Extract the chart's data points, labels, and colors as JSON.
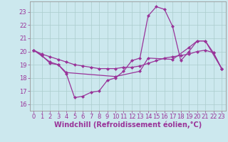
{
  "xlabel": "Windchill (Refroidissement éolien,°C)",
  "bg_color": "#cce8ee",
  "line_color": "#993399",
  "grid_color": "#aacccc",
  "axis_color": "#666666",
  "xlim": [
    -0.5,
    23.5
  ],
  "ylim": [
    15.5,
    23.8
  ],
  "yticks": [
    16,
    17,
    18,
    19,
    20,
    21,
    22,
    23
  ],
  "xticks": [
    0,
    1,
    2,
    3,
    4,
    5,
    6,
    7,
    8,
    9,
    10,
    11,
    12,
    13,
    14,
    15,
    16,
    17,
    18,
    19,
    20,
    21,
    22,
    23
  ],
  "line1_x": [
    0,
    1,
    2,
    3,
    4,
    5,
    6,
    7,
    8,
    9,
    10,
    11,
    12,
    13,
    14,
    15,
    16,
    17,
    18,
    19,
    20,
    21,
    22,
    23
  ],
  "line1_y": [
    20.1,
    19.7,
    19.1,
    19.0,
    18.3,
    16.5,
    16.6,
    16.9,
    17.0,
    17.8,
    18.0,
    18.5,
    19.3,
    19.5,
    22.7,
    23.4,
    23.2,
    21.9,
    19.3,
    20.0,
    20.8,
    20.8,
    19.9,
    18.7
  ],
  "line2_x": [
    0,
    2,
    3,
    4,
    10,
    13,
    14,
    17,
    19,
    20,
    21,
    23
  ],
  "line2_y": [
    20.1,
    19.2,
    19.0,
    18.4,
    18.1,
    18.5,
    19.5,
    19.4,
    20.3,
    20.8,
    20.8,
    18.7
  ],
  "line3_x": [
    0,
    1,
    2,
    3,
    4,
    5,
    6,
    7,
    8,
    9,
    10,
    11,
    12,
    13,
    14,
    15,
    16,
    17,
    18,
    19,
    20,
    21,
    22,
    23
  ],
  "line3_y": [
    20.1,
    19.8,
    19.6,
    19.4,
    19.2,
    19.0,
    18.9,
    18.8,
    18.7,
    18.7,
    18.7,
    18.8,
    18.8,
    18.9,
    19.1,
    19.3,
    19.5,
    19.6,
    19.7,
    19.8,
    20.0,
    20.1,
    19.9,
    18.7
  ],
  "marker": "D",
  "marker_size": 2.5,
  "font_color": "#993399",
  "tick_fontsize": 6,
  "label_fontsize": 7
}
